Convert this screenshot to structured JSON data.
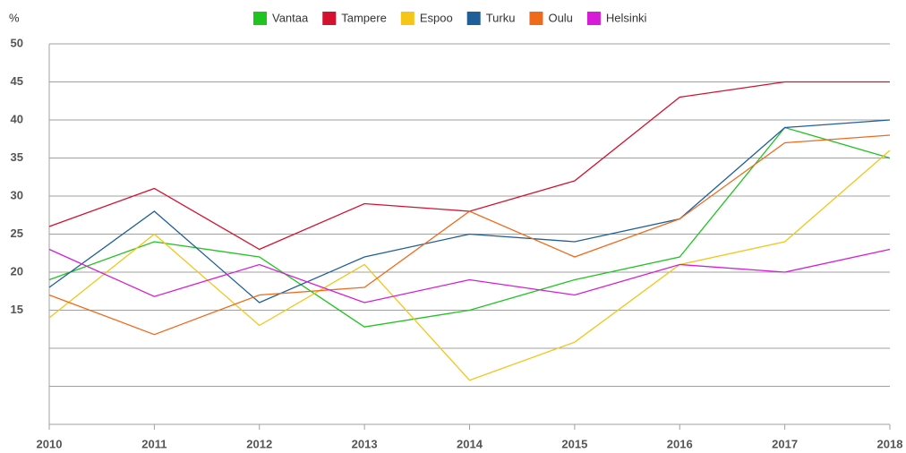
{
  "chart_data": {
    "type": "line",
    "y_unit": "%",
    "categories": [
      "2010",
      "2011",
      "2012",
      "2013",
      "2014",
      "2015",
      "2016",
      "2017",
      "2018"
    ],
    "series": [
      {
        "name": "Vantaa",
        "color": "#1fc41f",
        "values": [
          19,
          24,
          22,
          12.8,
          15,
          19,
          22,
          39,
          35
        ]
      },
      {
        "name": "Tampere",
        "color": "#d4112f",
        "values": [
          26,
          31,
          23,
          29,
          28,
          32,
          43,
          45,
          45
        ]
      },
      {
        "name": "Espoo",
        "color": "#f5c518",
        "values": [
          14,
          25,
          13,
          21,
          5.8,
          10.8,
          21,
          24,
          36
        ]
      },
      {
        "name": "Turku",
        "color": "#1f5f99",
        "values": [
          18,
          28,
          16,
          22,
          25,
          24,
          27,
          39,
          40
        ]
      },
      {
        "name": "Oulu",
        "color": "#f06a1c",
        "values": [
          17,
          11.8,
          17,
          18,
          28,
          22,
          27,
          37,
          38
        ]
      },
      {
        "name": "Helsinki",
        "color": "#d61cd6",
        "values": [
          23,
          16.8,
          21,
          16,
          19,
          17,
          21,
          20,
          23
        ]
      }
    ],
    "ylim": [
      0,
      50
    ],
    "yticks": [
      {
        "value": 0,
        "label": null
      },
      {
        "value": 5,
        "label": null
      },
      {
        "value": 10,
        "label": null
      },
      15,
      20,
      25,
      30,
      35,
      40,
      45,
      50
    ],
    "grid": true,
    "legend": "top"
  }
}
